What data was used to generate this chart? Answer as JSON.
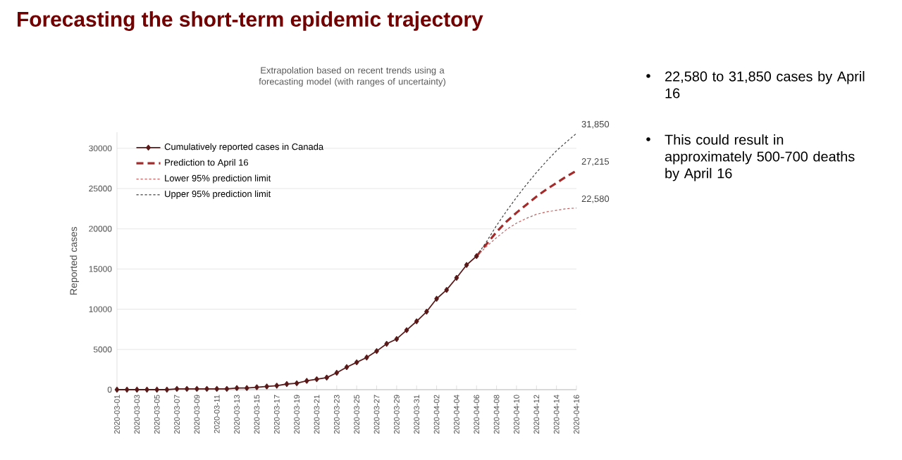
{
  "chart_data": {
    "type": "line",
    "title": "Forecasting the short-term epidemic trajectory",
    "subtitle": "Extrapolation based on recent trends using a forecasting model (with ranges of uncertainty)",
    "ylabel": "Reported cases",
    "xlim": [
      "2020-03-01",
      "2020-04-16"
    ],
    "xticks": [
      "2020-03-01",
      "2020-03-03",
      "2020-03-05",
      "2020-03-07",
      "2020-03-09",
      "2020-03-11",
      "2020-03-13",
      "2020-03-15",
      "2020-03-17",
      "2020-03-19",
      "2020-03-21",
      "2020-03-23",
      "2020-03-25",
      "2020-03-27",
      "2020-03-29",
      "2020-03-31",
      "2020-04-02",
      "2020-04-04",
      "2020-04-06",
      "2020-04-08",
      "2020-04-10",
      "2020-04-12",
      "2020-04-14",
      "2020-04-16"
    ],
    "ylim": [
      0,
      32000
    ],
    "yticks": [
      0,
      5000,
      10000,
      15000,
      20000,
      25000,
      30000
    ],
    "grid": "y",
    "legend": "top left",
    "series": [
      {
        "name": "Cumulatively reported cases in Canada",
        "color": "#5a1a1a",
        "marker": "diamond",
        "line_style": "solid",
        "x": [
          "2020-03-01",
          "2020-03-02",
          "2020-03-03",
          "2020-03-04",
          "2020-03-05",
          "2020-03-06",
          "2020-03-07",
          "2020-03-08",
          "2020-03-09",
          "2020-03-10",
          "2020-03-11",
          "2020-03-12",
          "2020-03-13",
          "2020-03-14",
          "2020-03-15",
          "2020-03-16",
          "2020-03-17",
          "2020-03-18",
          "2020-03-19",
          "2020-03-20",
          "2020-03-21",
          "2020-03-22",
          "2020-03-23",
          "2020-03-24",
          "2020-03-25",
          "2020-03-26",
          "2020-03-27",
          "2020-03-28",
          "2020-03-29",
          "2020-03-30",
          "2020-03-31",
          "2020-04-01",
          "2020-04-02",
          "2020-04-03",
          "2020-04-04",
          "2020-04-05",
          "2020-04-06"
        ],
        "values": [
          0,
          0,
          0,
          0,
          0,
          0,
          100,
          100,
          100,
          100,
          100,
          100,
          200,
          200,
          300,
          400,
          500,
          700,
          800,
          1100,
          1300,
          1500,
          2100,
          2800,
          3400,
          4000,
          4800,
          5700,
          6300,
          7400,
          8500,
          9700,
          11300,
          12400,
          13900,
          15500,
          16600
        ]
      },
      {
        "name": "Prediction to April 16",
        "color": "#a52a2a",
        "marker": "none",
        "line_style": "dashed",
        "x": [
          "2020-04-06",
          "2020-04-07",
          "2020-04-08",
          "2020-04-09",
          "2020-04-10",
          "2020-04-11",
          "2020-04-12",
          "2020-04-13",
          "2020-04-14",
          "2020-04-15",
          "2020-04-16"
        ],
        "values": [
          16600,
          18100,
          19600,
          20900,
          22000,
          23000,
          24000,
          24900,
          25700,
          26500,
          27215
        ]
      },
      {
        "name": "Lower 95% prediction limit",
        "color": "#c06060",
        "marker": "none",
        "line_style": "dotted",
        "x": [
          "2020-04-06",
          "2020-04-07",
          "2020-04-08",
          "2020-04-09",
          "2020-04-10",
          "2020-04-11",
          "2020-04-12",
          "2020-04-13",
          "2020-04-14",
          "2020-04-15",
          "2020-04-16"
        ],
        "values": [
          16600,
          17800,
          18900,
          19900,
          20700,
          21300,
          21800,
          22100,
          22300,
          22500,
          22580
        ]
      },
      {
        "name": "Upper 95% prediction limit",
        "color": "#404040",
        "marker": "none",
        "line_style": "dotted",
        "x": [
          "2020-04-06",
          "2020-04-07",
          "2020-04-08",
          "2020-04-09",
          "2020-04-10",
          "2020-04-11",
          "2020-04-12",
          "2020-04-13",
          "2020-04-14",
          "2020-04-15",
          "2020-04-16"
        ],
        "values": [
          16600,
          18400,
          20400,
          22200,
          23900,
          25500,
          27000,
          28400,
          29700,
          30800,
          31850
        ]
      }
    ],
    "annotations": [
      {
        "text": "31,850",
        "x": "2020-04-16",
        "y": 31850
      },
      {
        "text": "27,215",
        "x": "2020-04-16",
        "y": 27215
      },
      {
        "text": "22,580",
        "x": "2020-04-16",
        "y": 22580
      },
      "22,580 to 31,850 cases by April 16",
      "This could result in approximately 500-700 deaths by April 16"
    ]
  }
}
